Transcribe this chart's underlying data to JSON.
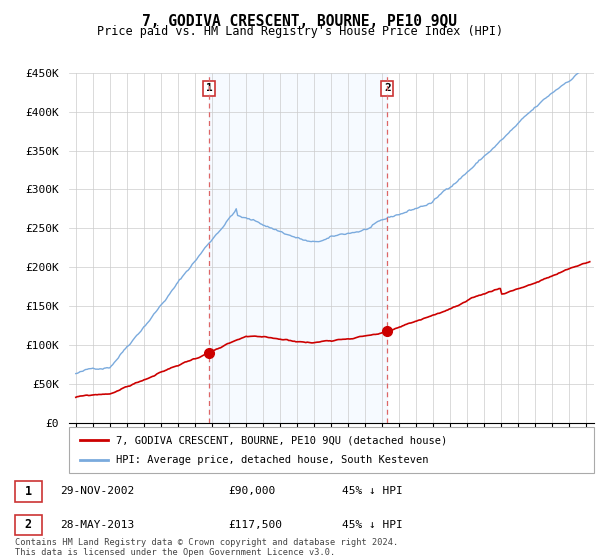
{
  "title": "7, GODIVA CRESCENT, BOURNE, PE10 9QU",
  "subtitle": "Price paid vs. HM Land Registry's House Price Index (HPI)",
  "red_label": "7, GODIVA CRESCENT, BOURNE, PE10 9QU (detached house)",
  "blue_label": "HPI: Average price, detached house, South Kesteven",
  "transaction1": {
    "num": "1",
    "date": "29-NOV-2002",
    "price": 90000,
    "pct": "45% ↓ HPI"
  },
  "transaction2": {
    "num": "2",
    "date": "28-MAY-2013",
    "price": 117500,
    "pct": "45% ↓ HPI"
  },
  "footer": "Contains HM Land Registry data © Crown copyright and database right 2024.\nThis data is licensed under the Open Government Licence v3.0.",
  "ylim": [
    0,
    450000
  ],
  "yticks": [
    0,
    50000,
    100000,
    150000,
    200000,
    250000,
    300000,
    350000,
    400000,
    450000
  ],
  "red_color": "#cc0000",
  "blue_color": "#7aaadd",
  "shade_color": "#ddeeff",
  "vline_color": "#dd6666",
  "grid_color": "#cccccc",
  "background": "#ffffff"
}
